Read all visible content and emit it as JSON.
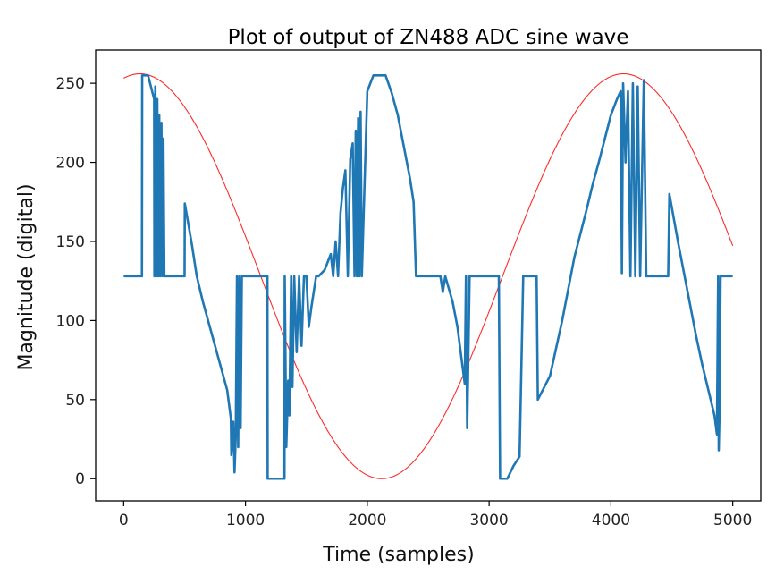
{
  "chart_data": {
    "type": "line",
    "title": "Plot of output of ZN488 ADC sine wave",
    "xlabel": "Time (samples)",
    "ylabel": "Magnitude (digital)",
    "xlim": [
      -230,
      5230
    ],
    "ylim": [
      -14,
      271
    ],
    "xticks": [
      0,
      1000,
      2000,
      3000,
      4000,
      5000
    ],
    "yticks": [
      0,
      50,
      100,
      150,
      200,
      250
    ],
    "grid": false,
    "legend": "none",
    "colors": {
      "adc": "#1f77b4",
      "reference": "#ff2a2a",
      "axes": "#000000"
    },
    "series": [
      {
        "color": "#ff2a2a",
        "function": "sine",
        "amplitude": 128,
        "offset": 128,
        "period_samples": 3970,
        "x_start": 0,
        "x_end": 5000,
        "peak_at": 133
      },
      {
        "color": "#1f77b4",
        "points": [
          [
            0,
            128
          ],
          [
            150,
            128
          ],
          [
            152,
            255
          ],
          [
            200,
            255
          ],
          [
            250,
            240
          ],
          [
            252,
            128
          ],
          [
            260,
            248
          ],
          [
            268,
            128
          ],
          [
            276,
            240
          ],
          [
            284,
            128
          ],
          [
            292,
            230
          ],
          [
            300,
            128
          ],
          [
            310,
            225
          ],
          [
            318,
            128
          ],
          [
            326,
            215
          ],
          [
            334,
            128
          ],
          [
            500,
            128
          ],
          [
            502,
            174
          ],
          [
            560,
            148
          ],
          [
            600,
            128
          ],
          [
            650,
            112
          ],
          [
            700,
            98
          ],
          [
            750,
            84
          ],
          [
            800,
            70
          ],
          [
            850,
            56
          ],
          [
            880,
            38
          ],
          [
            884,
            15
          ],
          [
            900,
            36
          ],
          [
            910,
            4
          ],
          [
            920,
            26
          ],
          [
            930,
            128
          ],
          [
            940,
            20
          ],
          [
            950,
            128
          ],
          [
            960,
            32
          ],
          [
            970,
            128
          ],
          [
            1180,
            128
          ],
          [
            1182,
            0
          ],
          [
            1320,
            0
          ],
          [
            1322,
            128
          ],
          [
            1335,
            20
          ],
          [
            1350,
            62
          ],
          [
            1360,
            40
          ],
          [
            1375,
            128
          ],
          [
            1385,
            58
          ],
          [
            1400,
            128
          ],
          [
            1420,
            80
          ],
          [
            1440,
            128
          ],
          [
            1460,
            84
          ],
          [
            1480,
            128
          ],
          [
            1500,
            128
          ],
          [
            1520,
            96
          ],
          [
            1540,
            108
          ],
          [
            1560,
            118
          ],
          [
            1580,
            128
          ],
          [
            1600,
            128
          ],
          [
            1650,
            132
          ],
          [
            1700,
            142
          ],
          [
            1720,
            128
          ],
          [
            1740,
            150
          ],
          [
            1760,
            128
          ],
          [
            1780,
            168
          ],
          [
            1800,
            184
          ],
          [
            1820,
            195
          ],
          [
            1840,
            128
          ],
          [
            1860,
            202
          ],
          [
            1880,
            212
          ],
          [
            1895,
            128
          ],
          [
            1905,
            220
          ],
          [
            1915,
            128
          ],
          [
            1925,
            228
          ],
          [
            1935,
            128
          ],
          [
            1945,
            232
          ],
          [
            1955,
            128
          ],
          [
            2000,
            245
          ],
          [
            2050,
            255
          ],
          [
            2150,
            255
          ],
          [
            2200,
            244
          ],
          [
            2250,
            230
          ],
          [
            2300,
            210
          ],
          [
            2350,
            190
          ],
          [
            2380,
            175
          ],
          [
            2400,
            128
          ],
          [
            2600,
            128
          ],
          [
            2620,
            118
          ],
          [
            2640,
            128
          ],
          [
            2700,
            112
          ],
          [
            2740,
            96
          ],
          [
            2760,
            84
          ],
          [
            2780,
            72
          ],
          [
            2800,
            60
          ],
          [
            2810,
            128
          ],
          [
            2820,
            32
          ],
          [
            2840,
            128
          ],
          [
            3080,
            128
          ],
          [
            3090,
            0
          ],
          [
            3150,
            0
          ],
          [
            3200,
            8
          ],
          [
            3250,
            14
          ],
          [
            3280,
            128
          ],
          [
            3300,
            128
          ],
          [
            3390,
            128
          ],
          [
            3400,
            50
          ],
          [
            3500,
            65
          ],
          [
            3600,
            100
          ],
          [
            3700,
            140
          ],
          [
            3800,
            170
          ],
          [
            3850,
            186
          ],
          [
            3900,
            200
          ],
          [
            3950,
            215
          ],
          [
            4000,
            230
          ],
          [
            4050,
            240
          ],
          [
            4080,
            245
          ],
          [
            4090,
            130
          ],
          [
            4100,
            250
          ],
          [
            4120,
            200
          ],
          [
            4140,
            245
          ],
          [
            4160,
            128
          ],
          [
            4180,
            250
          ],
          [
            4200,
            128
          ],
          [
            4220,
            248
          ],
          [
            4240,
            128
          ],
          [
            4270,
            252
          ],
          [
            4290,
            128
          ],
          [
            4300,
            128
          ],
          [
            4470,
            128
          ],
          [
            4480,
            180
          ],
          [
            4550,
            150
          ],
          [
            4600,
            130
          ],
          [
            4650,
            110
          ],
          [
            4700,
            90
          ],
          [
            4750,
            72
          ],
          [
            4800,
            56
          ],
          [
            4850,
            40
          ],
          [
            4870,
            28
          ],
          [
            4880,
            128
          ],
          [
            4885,
            18
          ],
          [
            4890,
            36
          ],
          [
            4900,
            128
          ],
          [
            5000,
            128
          ]
        ]
      }
    ]
  }
}
